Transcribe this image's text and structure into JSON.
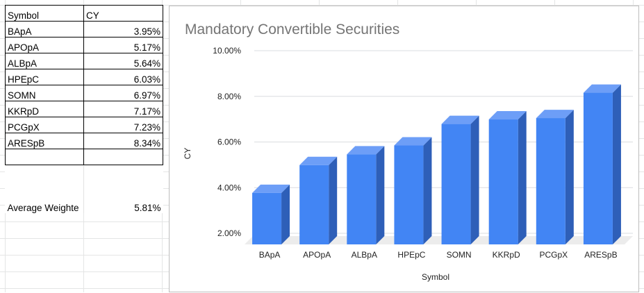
{
  "table": {
    "header": {
      "col1": "Symbol",
      "col2": "CY"
    },
    "rows": [
      {
        "symbol": "BApA",
        "cy": "3.95%"
      },
      {
        "symbol": "APOpA",
        "cy": "5.17%"
      },
      {
        "symbol": "ALBpA",
        "cy": "5.64%"
      },
      {
        "symbol": "HPEpC",
        "cy": "6.03%"
      },
      {
        "symbol": "SOMN",
        "cy": "6.97%"
      },
      {
        "symbol": "KKRpD",
        "cy": "7.17%"
      },
      {
        "symbol": "PCGpX",
        "cy": "7.23%"
      },
      {
        "symbol": "ARESpB",
        "cy": "8.34%"
      }
    ],
    "summary": {
      "label": "Average Weighte",
      "value": "5.81%"
    }
  },
  "chart_data": {
    "type": "bar",
    "title": "Mandatory Convertible Securities",
    "xlabel": "Symbol",
    "ylabel": "CY",
    "categories": [
      "BApA",
      "APOpA",
      "ALBpA",
      "HPEpC",
      "SOMN",
      "KKRpD",
      "PCGpX",
      "ARESpB"
    ],
    "values": [
      3.95,
      5.17,
      5.64,
      6.03,
      6.97,
      7.17,
      7.23,
      8.34
    ],
    "ylim": [
      2,
      10
    ],
    "yticks": [
      "2.00%",
      "4.00%",
      "6.00%",
      "8.00%",
      "10.00%"
    ],
    "grid": true,
    "legend": "none",
    "style": "3d",
    "colors": {
      "bar_front": "#4285f4",
      "bar_top": "#6d9ef7",
      "bar_side": "#2e5fb8",
      "grid": "#dadce0"
    }
  }
}
